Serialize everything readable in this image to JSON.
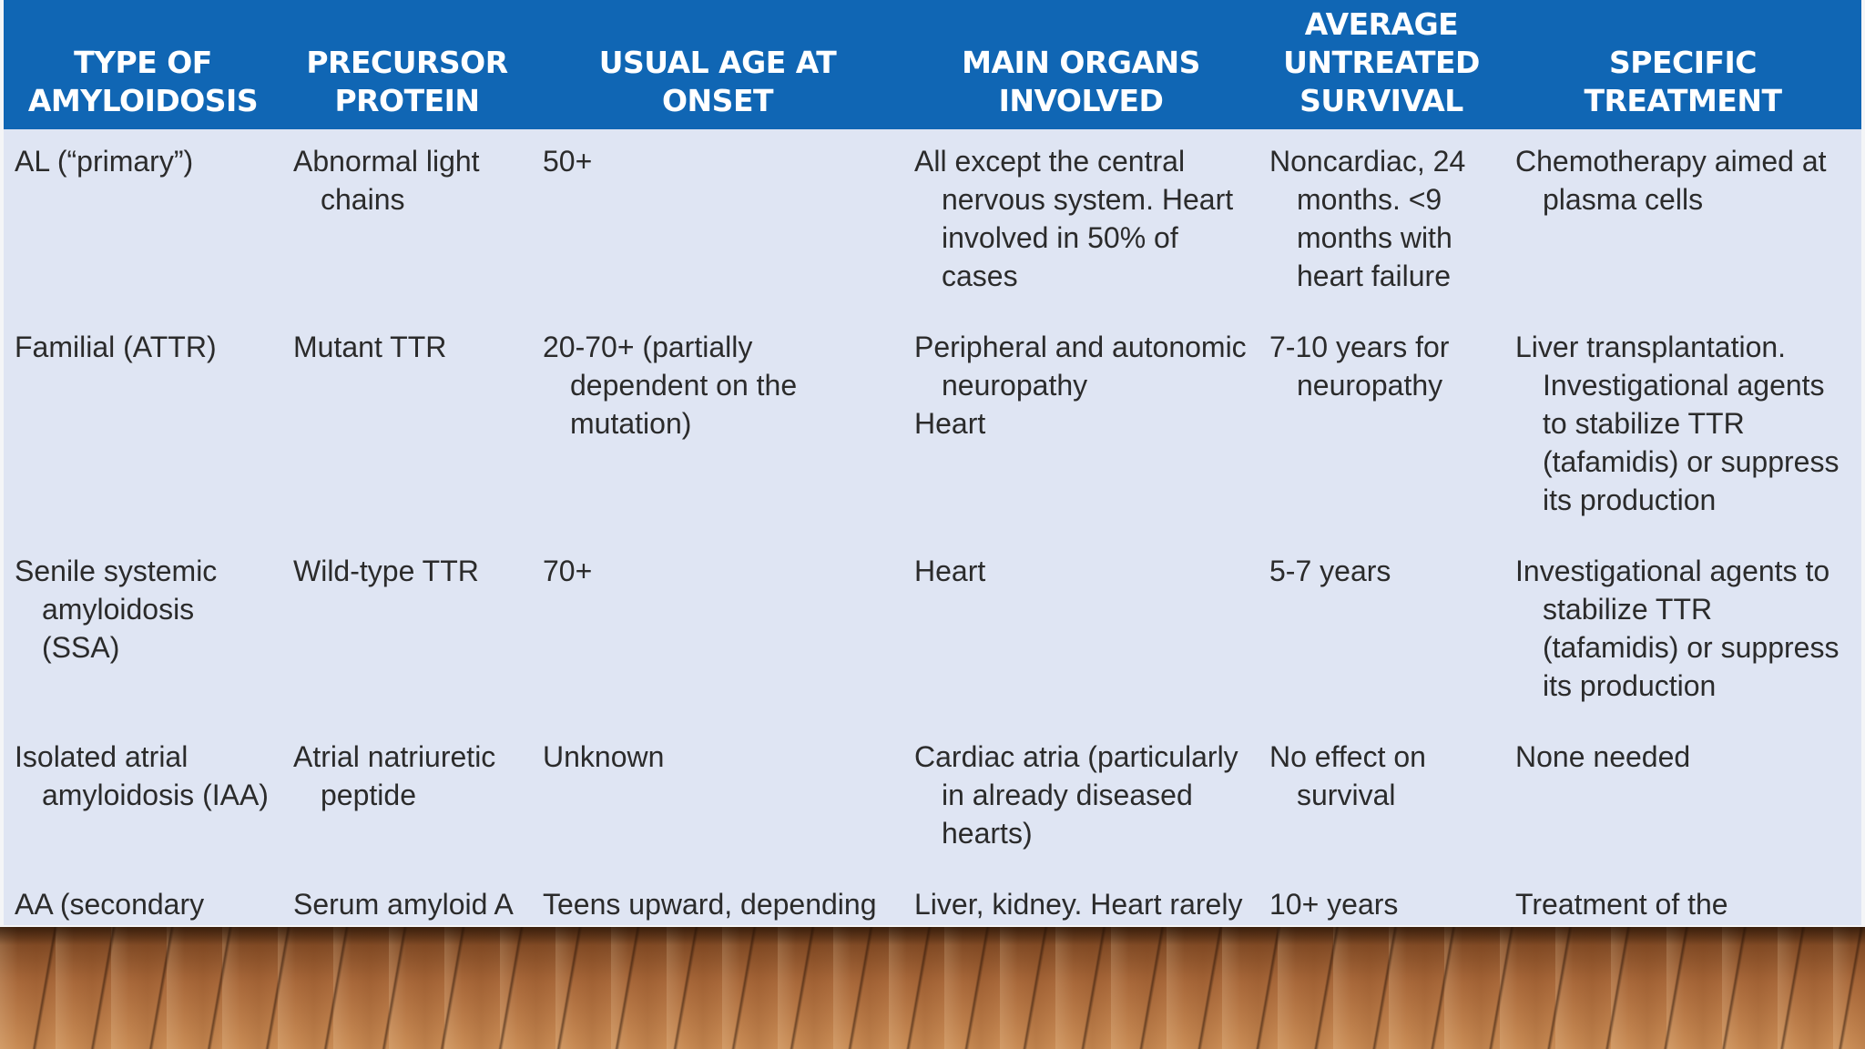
{
  "table": {
    "headers": [
      "TYPE OF AMYLOIDOSIS",
      "PRECURSOR PROTEIN",
      "USUAL AGE AT ONSET",
      "MAIN ORGANS INVOLVED",
      "AVERAGE UNTREATED SURVIVAL",
      "SPECIFIC TREATMENT"
    ],
    "rows": [
      {
        "type": "AL (“primary”)",
        "precursor": "Abnormal light chains",
        "age": "50+",
        "organs": "All except the central nervous system. Heart involved in 50% of cases",
        "survival": "Noncardiac, 24 months. <9 months with heart failure",
        "treatment": "Chemotherapy aimed at plasma cells"
      },
      {
        "type": "Familial (ATTR)",
        "precursor": "Mutant TTR",
        "age": "20-70+ (partially dependent on the mutation)",
        "organs": "Peripheral and autonomic neuropathy",
        "organs_extra": "Heart",
        "survival": "7-10 years for neuropathy",
        "treatment": "Liver transplantation. Investigational agents to stabilize TTR (tafamidis) or suppress its production"
      },
      {
        "type": "Senile systemic amyloidosis (SSA)",
        "precursor": "Wild-type TTR",
        "age": "70+",
        "organs": "Heart",
        "survival": "5-7 years",
        "treatment": "Investigational agents to stabilize TTR (tafamidis) or suppress its production"
      },
      {
        "type": "Isolated atrial amyloidosis (IAA)",
        "precursor": "Atrial natriuretic peptide",
        "age": "Unknown",
        "organs": "Cardiac atria (particularly in already diseased hearts)",
        "survival": "No effect on survival",
        "treatment": "None needed"
      },
      {
        "type": "AA (secondary amyloidosis)",
        "precursor": "Serum amyloid A (SAA)—an inflammatory protein",
        "age": "Teens upward, depending on the underlying inflammatory condition",
        "organs": "Liver, kidney. Heart rarely",
        "survival": "10+ years",
        "treatment": "Treatment of the underlying inflammatory condition"
      }
    ]
  },
  "colors": {
    "header_bg": "#1066b4",
    "header_text": "#ffffff",
    "body_bg": "#dfe5f3",
    "body_text": "#2b2b2b"
  }
}
